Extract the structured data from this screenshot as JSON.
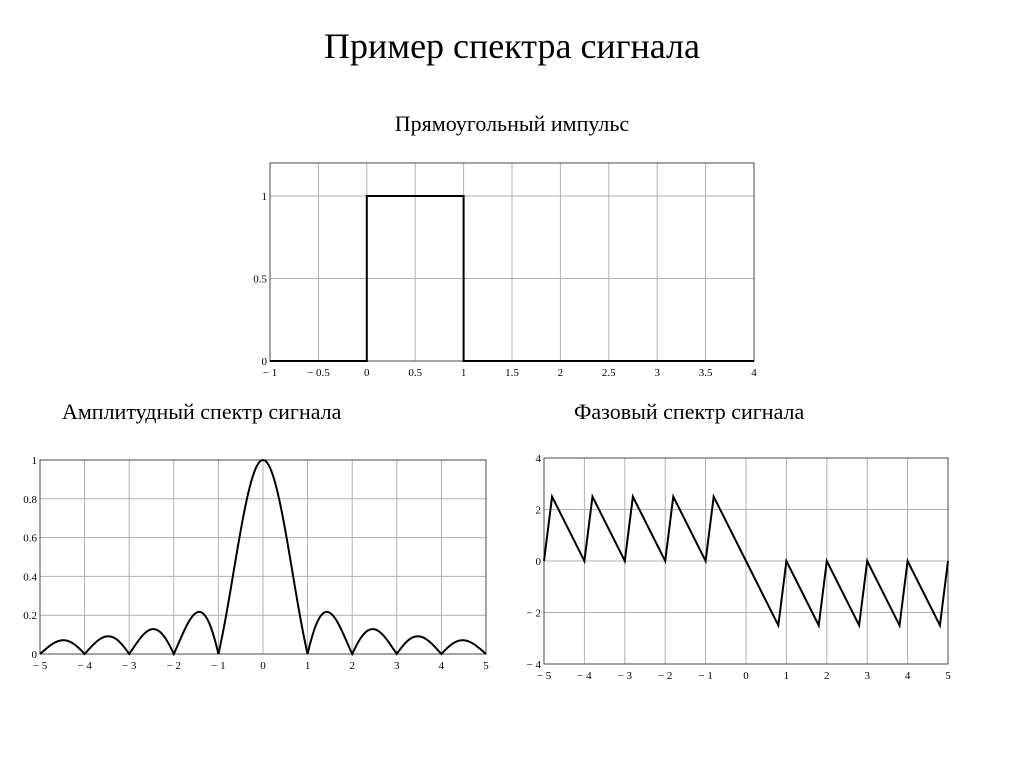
{
  "slide": {
    "title": "Пример спектра сигнала",
    "subtitles": [
      "Прямоугольный импульс",
      "Амплитудный спектр сигнала",
      "Фазовый спектр сигнала"
    ]
  },
  "chart_data": [
    {
      "type": "line",
      "title": "Прямоугольный импульс",
      "xlim": [
        -1,
        4
      ],
      "ylim": [
        0,
        1.2
      ],
      "grid": true,
      "x_ticks": [
        -1,
        -0.5,
        0,
        0.5,
        1,
        1.5,
        2,
        2.5,
        3,
        3.5,
        4
      ],
      "x_tick_labels": [
        "− 1",
        "− 0.5",
        "0",
        "0.5",
        "1",
        "1.5",
        "2",
        "2.5",
        "3",
        "3.5",
        "4"
      ],
      "y_ticks": [
        0,
        0.5,
        1
      ],
      "y_tick_labels": [
        "0",
        "0.5",
        "1"
      ],
      "series": [
        {
          "points": [
            [
              -1,
              0
            ],
            [
              0,
              0
            ],
            [
              0,
              1
            ],
            [
              1,
              1
            ],
            [
              1,
              0
            ],
            [
              4,
              0
            ]
          ]
        }
      ]
    },
    {
      "type": "line",
      "title": "Амплитудный спектр сигнала",
      "xlim": [
        -5,
        5
      ],
      "ylim": [
        0,
        1
      ],
      "grid": true,
      "x_ticks": [
        -5,
        -4,
        -3,
        -2,
        -1,
        0,
        1,
        2,
        3,
        4,
        5
      ],
      "x_tick_labels": [
        "− 5",
        "− 4",
        "− 3",
        "− 2",
        "− 1",
        "0",
        "1",
        "2",
        "3",
        "4",
        "5"
      ],
      "y_ticks": [
        0,
        0.2,
        0.4,
        0.6,
        0.8,
        1
      ],
      "y_tick_labels": [
        "0",
        "0.2",
        "0.4",
        "0.6",
        "0.8",
        "1"
      ],
      "series": [
        {
          "function": "abs_sinc",
          "x_range": [
            -5,
            5
          ]
        }
      ]
    },
    {
      "type": "line",
      "title": "Фазовый спектр сигнала",
      "xlim": [
        -5,
        5
      ],
      "ylim": [
        -4,
        4
      ],
      "grid": true,
      "x_ticks": [
        -5,
        -4,
        -3,
        -2,
        -1,
        0,
        1,
        2,
        3,
        4,
        5
      ],
      "x_tick_labels": [
        "− 5",
        "− 4",
        "− 3",
        "− 2",
        "− 1",
        "0",
        "1",
        "2",
        "3",
        "4",
        "5"
      ],
      "y_ticks": [
        -4,
        -2,
        0,
        2,
        4
      ],
      "y_tick_labels": [
        "− 4",
        "− 2",
        "0",
        "2",
        "4"
      ],
      "series": [
        {
          "points": [
            [
              -5,
              0
            ],
            [
              -4.8,
              2.5
            ],
            [
              -4,
              0
            ],
            [
              -3.8,
              2.5
            ],
            [
              -3,
              0
            ],
            [
              -2.8,
              2.5
            ],
            [
              -2,
              0
            ],
            [
              -1.8,
              2.5
            ],
            [
              -1,
              0
            ],
            [
              -0.8,
              2.5
            ],
            [
              0,
              0
            ],
            [
              0.8,
              -2.5
            ],
            [
              1,
              0
            ],
            [
              1.8,
              -2.5
            ],
            [
              2,
              0
            ],
            [
              2.8,
              -2.5
            ],
            [
              3,
              0
            ],
            [
              3.8,
              -2.5
            ],
            [
              4,
              0
            ],
            [
              4.8,
              -2.5
            ],
            [
              5,
              0
            ]
          ]
        }
      ]
    }
  ]
}
